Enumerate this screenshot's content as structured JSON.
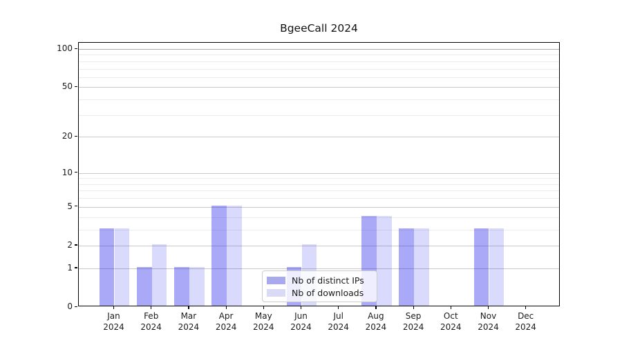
{
  "title": "BgeeCall 2024",
  "legend": {
    "items": [
      {
        "label": "Nb of distinct IPs",
        "series": "distinct_ips"
      },
      {
        "label": "Nb of downloads",
        "series": "downloads"
      }
    ]
  },
  "colors": {
    "bar_distinct_ips": "rgba(10,10,235,0.35)",
    "bar_downloads": "rgba(10,10,235,0.15)",
    "legend_swatch_distinct_ips": "#a9a9ee",
    "legend_swatch_downloads": "#dadaf6",
    "grid_major": "#c8c8c8",
    "grid_minor": "#ececec",
    "grid_top": "#ababab",
    "spine": "#000000"
  },
  "chart_data": {
    "type": "bar",
    "title": "BgeeCall 2024",
    "categories": [
      "Jan 2024",
      "Feb 2024",
      "Mar 2024",
      "Apr 2024",
      "May 2024",
      "Jun 2024",
      "Jul 2024",
      "Aug 2024",
      "Sep 2024",
      "Oct 2024",
      "Nov 2024",
      "Dec 2024"
    ],
    "x_tick_labels": [
      [
        "Jan",
        "2024"
      ],
      [
        "Feb",
        "2024"
      ],
      [
        "Mar",
        "2024"
      ],
      [
        "Apr",
        "2024"
      ],
      [
        "May",
        "2024"
      ],
      [
        "Jun",
        "2024"
      ],
      [
        "Jul",
        "2024"
      ],
      [
        "Aug",
        "2024"
      ],
      [
        "Sep",
        "2024"
      ],
      [
        "Oct",
        "2024"
      ],
      [
        "Nov",
        "2024"
      ],
      [
        "Dec",
        "2024"
      ]
    ],
    "series": [
      {
        "name": "Nb of distinct IPs",
        "values": [
          3,
          1,
          1,
          5,
          0,
          1,
          0,
          4,
          3,
          0,
          3,
          0
        ]
      },
      {
        "name": "Nb of downloads",
        "values": [
          3,
          2,
          1,
          5,
          0,
          2,
          0,
          4,
          3,
          0,
          3,
          0
        ]
      }
    ],
    "xlabel": "",
    "ylabel": "",
    "yscale": "log1p",
    "y_ticks": [
      0,
      1,
      2,
      5,
      10,
      20,
      50,
      100
    ],
    "y_minor_ticks": [
      3,
      4,
      6,
      7,
      8,
      9,
      30,
      40,
      60,
      70,
      80,
      90
    ],
    "ylim": [
      0,
      112
    ],
    "grid": true,
    "legend_position": "lower center"
  }
}
